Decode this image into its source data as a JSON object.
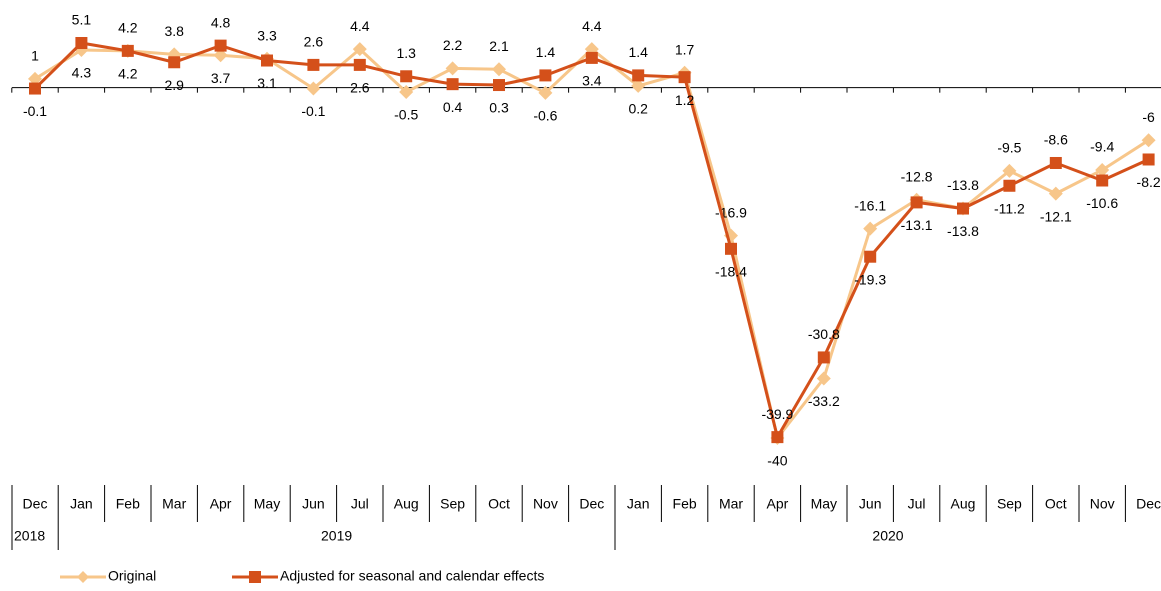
{
  "chart_data": {
    "type": "line",
    "categories": [
      "Dec",
      "Jan",
      "Feb",
      "Mar",
      "Apr",
      "May",
      "Jun",
      "Jul",
      "Aug",
      "Sep",
      "Oct",
      "Nov",
      "Dec",
      "Jan",
      "Feb",
      "Mar",
      "Apr",
      "May",
      "Jun",
      "Jul",
      "Aug",
      "Sep",
      "Oct",
      "Nov",
      "Dec"
    ],
    "years": [
      "2018",
      "2019",
      "2020"
    ],
    "series": [
      {
        "name": "Original",
        "color": "#f7c68a",
        "marker": "diamond",
        "values": [
          1.0,
          4.3,
          4.2,
          3.8,
          3.7,
          3.3,
          -0.1,
          4.4,
          -0.5,
          2.2,
          2.1,
          -0.6,
          4.4,
          0.2,
          1.7,
          -16.9,
          -40.0,
          -33.2,
          -16.1,
          -12.8,
          -13.8,
          -9.5,
          -12.1,
          -9.4,
          -6.0
        ]
      },
      {
        "name": "Adjusted for seasonal and calendar effects",
        "color": "#d4501a",
        "marker": "square",
        "values": [
          -0.1,
          5.1,
          4.2,
          2.9,
          4.8,
          3.1,
          2.6,
          2.6,
          1.3,
          0.4,
          0.3,
          1.4,
          3.4,
          1.4,
          1.2,
          -18.4,
          -39.9,
          -30.8,
          -19.3,
          -13.1,
          -13.8,
          -11.2,
          -8.6,
          -10.6,
          -8.2
        ]
      }
    ]
  }
}
